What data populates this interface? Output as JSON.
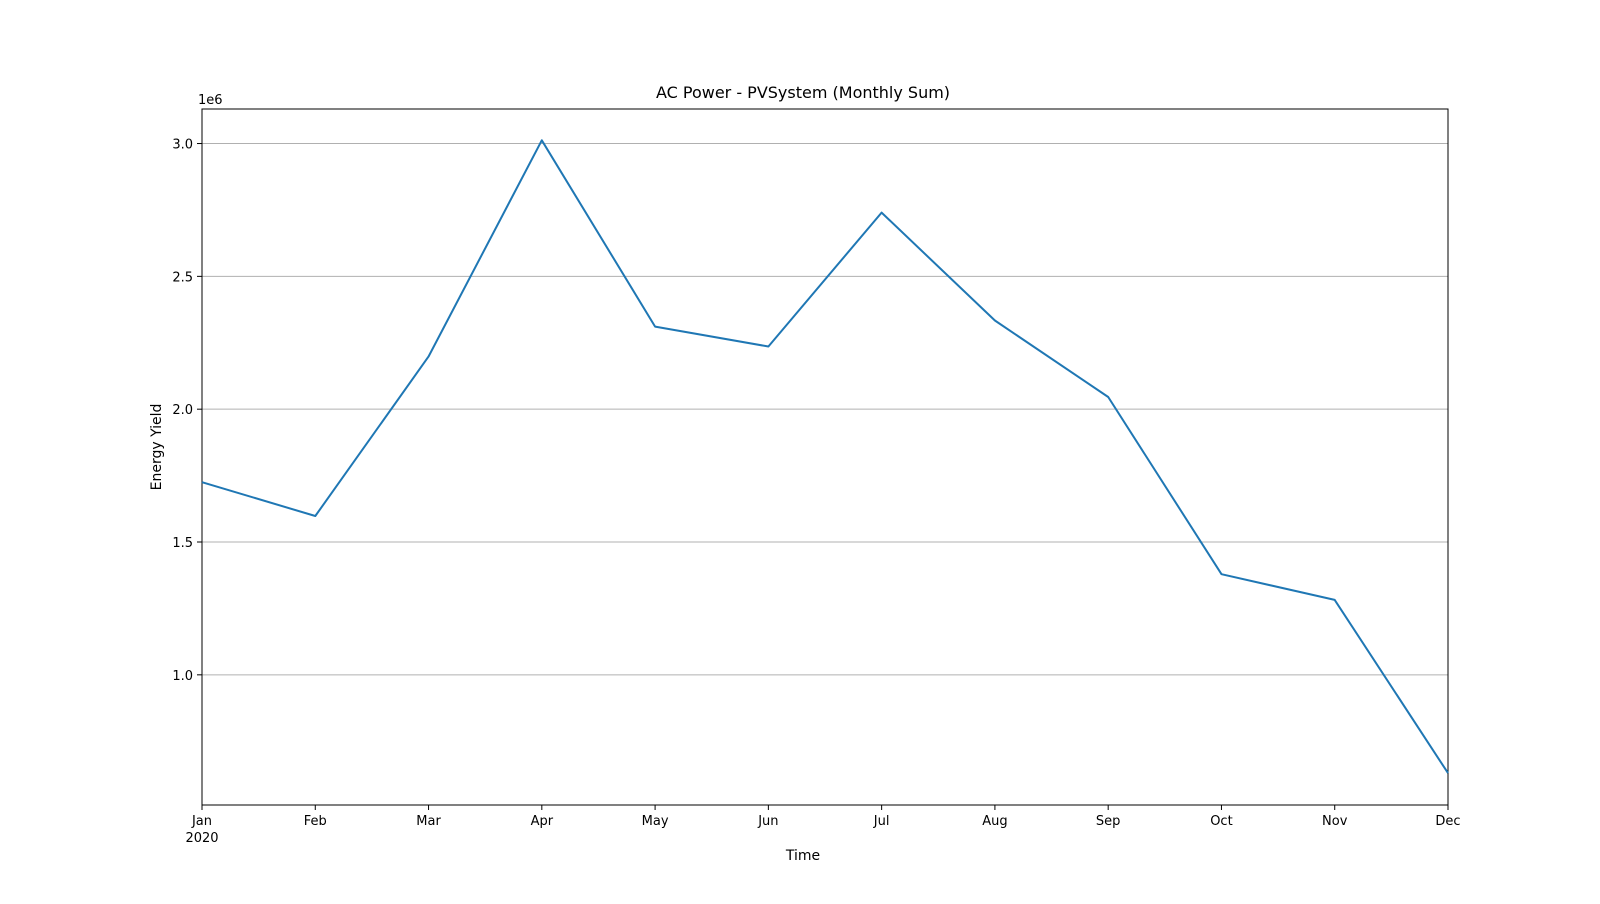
{
  "chart_data": {
    "type": "line",
    "title": "AC Power - PVSystem (Monthly Sum)",
    "xlabel": "Time",
    "ylabel": "Energy Yield",
    "y_scale_label": "1e6",
    "x_year_label": "2020",
    "categories": [
      "Jan",
      "Feb",
      "Mar",
      "Apr",
      "May",
      "Jun",
      "Jul",
      "Aug",
      "Sep",
      "Oct",
      "Nov",
      "Dec"
    ],
    "series": [
      {
        "values": [
          1725000,
          1598000,
          2198000,
          3012000,
          2311000,
          2236000,
          2740000,
          2334000,
          2046000,
          1379000,
          1282000,
          630000
        ],
        "color": "#1f77b4"
      }
    ],
    "ylim": [
      510000,
      3130000
    ],
    "yticks": [
      {
        "value": 1000000,
        "label": "1.0"
      },
      {
        "value": 1500000,
        "label": "1.5"
      },
      {
        "value": 2000000,
        "label": "2.0"
      },
      {
        "value": 2500000,
        "label": "2.5"
      },
      {
        "value": 3000000,
        "label": "3.0"
      }
    ],
    "grid": {
      "y": true,
      "x": false
    },
    "legend": "none"
  }
}
